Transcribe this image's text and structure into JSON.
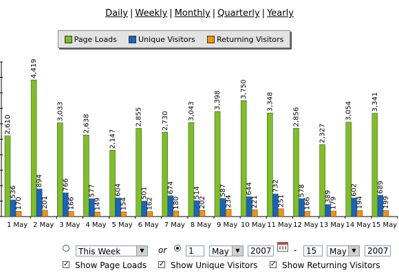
{
  "periods": [
    "Daily",
    "Weekly",
    "Monthly",
    "Quarterly",
    "Yearly"
  ],
  "legend": [
    {
      "label": "Page Loads",
      "color": "#7dc11e"
    },
    {
      "label": "Unique Visitors",
      "color": "#1565c0"
    },
    {
      "label": "Returning Visitors",
      "color": "#f59400"
    }
  ],
  "chart_data": {
    "type": "bar",
    "categories": [
      "1 May",
      "2 May",
      "3 May",
      "4 May",
      "5 May",
      "6 May",
      "7 May",
      "8 May",
      "9 May",
      "10 May",
      "11 May",
      "12 May",
      "13 May",
      "14 May",
      "15 May"
    ],
    "series": [
      {
        "name": "Page Loads",
        "color": "#7dc11e",
        "values": [
          2610,
          4419,
          3033,
          2638,
          2147,
          2855,
          2730,
          3043,
          3398,
          3750,
          3348,
          2856,
          2327,
          3054,
          3341
        ],
        "labels": [
          "2,610",
          "4,419",
          "3,033",
          "2,638",
          "2,147",
          "2,855",
          "2,730",
          "3,043",
          "3,398",
          "3,750",
          "3,348",
          "2,856",
          "2,327",
          "3,054",
          "3,341"
        ]
      },
      {
        "name": "Unique Visitors",
        "color": "#1565c0",
        "values": [
          536,
          894,
          766,
          577,
          604,
          501,
          674,
          514,
          587,
          644,
          732,
          578,
          389,
          602,
          689
        ],
        "labels": [
          "536",
          "894",
          "766",
          "577",
          "604",
          "501",
          "674",
          "514",
          "587",
          "644",
          "732",
          "578",
          "389",
          "602",
          "689"
        ]
      },
      {
        "name": "Returning Visitors",
        "color": "#f59400",
        "values": [
          170,
          201,
          166,
          149,
          154,
          162,
          180,
          202,
          234,
          221,
          251,
          166,
          179,
          194,
          199
        ],
        "labels": [
          "170",
          "201",
          "166",
          "149",
          "154",
          "162",
          "180",
          "202",
          "234",
          "221",
          "251",
          "166",
          "179",
          "194",
          "199"
        ]
      }
    ],
    "ylim": [
      0,
      5000
    ],
    "grid": false,
    "legend_position": "top-center"
  },
  "controls": {
    "range_select": "This Week",
    "or_label": "or",
    "from_day": "1",
    "from_month": "May",
    "from_year": "2007",
    "dash": "-",
    "to_day": "15",
    "to_month": "May",
    "to_year": "2007",
    "show_page_loads": "Show Page Loads",
    "show_unique": "Show Unique Visitors",
    "show_returning": "Show Returning Visitors",
    "checkmark": "✓"
  }
}
